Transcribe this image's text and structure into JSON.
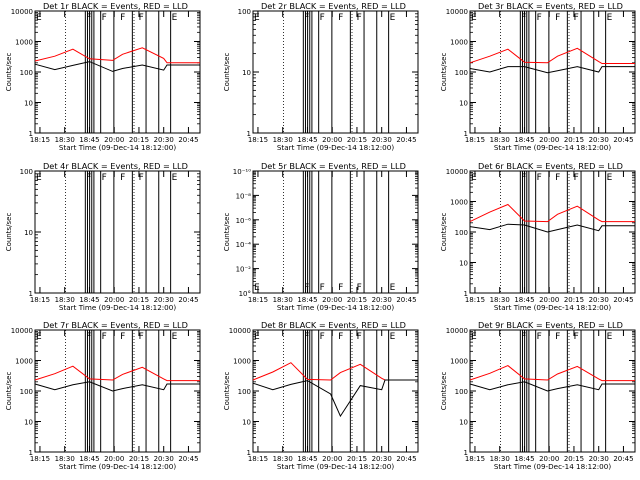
{
  "figure": {
    "xlabel_prefix": "Start Time",
    "start_label": "(09-Dec-14 18:12:00)"
  },
  "chart_data": [
    {
      "type": "line",
      "title": "Det 1r BLACK = Events, RED = LLD",
      "ylabel": "Counts/sec",
      "yscale": "log",
      "ylim": [
        1,
        10000
      ],
      "yticks": [
        "1",
        "10",
        "100",
        "1000",
        "10000"
      ],
      "xlim": [
        "18:12",
        "20:52"
      ],
      "xticks": [
        "18:15",
        "18:30",
        "18:45",
        "20:00",
        "20:15",
        "20:30",
        "20:45"
      ],
      "flags": [
        "E",
        "F",
        "F",
        "F",
        "F",
        "E"
      ],
      "series": [
        {
          "color": "#ff0000",
          "x": [
            "18:12",
            "18:24",
            "18:35",
            "18:45",
            "19:55",
            "20:05",
            "20:17",
            "20:30",
            "20:32",
            "20:52"
          ],
          "y": [
            230,
            330,
            560,
            270,
            240,
            380,
            620,
            280,
            200,
            200
          ]
        },
        {
          "color": "#000000",
          "x": [
            "18:12",
            "18:24",
            "18:35",
            "18:45",
            "19:55",
            "20:05",
            "20:17",
            "20:30",
            "20:32",
            "20:52"
          ],
          "y": [
            180,
            120,
            165,
            220,
            105,
            130,
            170,
            115,
            170,
            170
          ]
        }
      ]
    },
    {
      "type": "line",
      "title": "Det 2r BLACK = Events, RED = LLD",
      "ylabel": "Counts/sec",
      "yscale": "log",
      "ylim": [
        1,
        100
      ],
      "yticks": [
        "1",
        "10",
        "100"
      ],
      "xlim": [
        "18:12",
        "20:52"
      ],
      "xticks": [
        "18:15",
        "18:30",
        "18:45",
        "20:00",
        "20:15",
        "20:30",
        "20:45"
      ],
      "flags": [
        "E",
        "F",
        "F",
        "F",
        "F",
        "E"
      ],
      "series": []
    },
    {
      "type": "line",
      "title": "Det 3r BLACK = Events, RED = LLD",
      "ylabel": "Counts/sec",
      "yscale": "log",
      "ylim": [
        1,
        10000
      ],
      "yticks": [
        "1",
        "10",
        "100",
        "1000",
        "10000"
      ],
      "xlim": [
        "18:12",
        "20:52"
      ],
      "xticks": [
        "18:15",
        "18:30",
        "18:45",
        "20:00",
        "20:15",
        "20:30",
        "20:45"
      ],
      "flags": [
        "E",
        "F",
        "F",
        "F",
        "F",
        "E"
      ],
      "series": [
        {
          "color": "#ff0000",
          "x": [
            "18:12",
            "18:24",
            "18:35",
            "18:45",
            "19:55",
            "20:05",
            "20:17",
            "20:30",
            "20:32",
            "20:52"
          ],
          "y": [
            200,
            330,
            560,
            210,
            200,
            330,
            600,
            220,
            190,
            190
          ]
        },
        {
          "color": "#000000",
          "x": [
            "18:12",
            "18:24",
            "18:35",
            "18:45",
            "19:55",
            "20:05",
            "20:17",
            "20:30",
            "20:32",
            "20:52"
          ],
          "y": [
            130,
            100,
            150,
            150,
            95,
            110,
            150,
            100,
            150,
            150
          ]
        }
      ]
    },
    {
      "type": "line",
      "title": "Det 4r BLACK = Events, RED = LLD",
      "ylabel": "Counts/sec",
      "yscale": "log",
      "ylim": [
        1,
        100
      ],
      "yticks": [
        "1",
        "10",
        "100"
      ],
      "xlim": [
        "18:12",
        "20:52"
      ],
      "xticks": [
        "18:15",
        "18:30",
        "18:45",
        "20:00",
        "20:15",
        "20:30",
        "20:45"
      ],
      "flags": [
        "E",
        "F",
        "F",
        "F",
        "F",
        "E"
      ],
      "series": []
    },
    {
      "type": "line",
      "title": "Det 5r BLACK = Events, RED = LLD",
      "ylabel": "Counts/sec",
      "yscale": "log",
      "ylim": [
        1,
        1e-10
      ],
      "yticks": [
        "10°",
        "10⁻²",
        "10⁻⁴",
        "10⁻⁶",
        "10⁻⁸",
        "10⁻¹⁰"
      ],
      "xlim": [
        "18:12",
        "20:52"
      ],
      "xticks": [
        "18:15",
        "18:30",
        "18:45",
        "20:00",
        "20:15",
        "20:30",
        "20:45"
      ],
      "flags": [
        "E",
        "F",
        "F",
        "F",
        "F",
        "E"
      ],
      "series": []
    },
    {
      "type": "line",
      "title": "Det 6r BLACK = Events, RED = LLD",
      "ylabel": "Counts/sec",
      "yscale": "log",
      "ylim": [
        1,
        10000
      ],
      "yticks": [
        "1",
        "10",
        "100",
        "1000",
        "10000"
      ],
      "xlim": [
        "18:12",
        "20:52"
      ],
      "xticks": [
        "18:15",
        "18:30",
        "18:45",
        "20:00",
        "20:15",
        "20:30",
        "20:45"
      ],
      "flags": [
        "E",
        "F",
        "F",
        "F",
        "F",
        "E"
      ],
      "series": [
        {
          "color": "#ff0000",
          "x": [
            "18:12",
            "18:24",
            "18:35",
            "18:45",
            "19:55",
            "20:05",
            "20:17",
            "20:30",
            "20:32",
            "20:52"
          ],
          "y": [
            220,
            450,
            800,
            230,
            220,
            380,
            700,
            250,
            220,
            220
          ]
        },
        {
          "color": "#000000",
          "x": [
            "18:12",
            "18:24",
            "18:35",
            "18:45",
            "19:55",
            "20:05",
            "20:17",
            "20:30",
            "20:32",
            "20:52"
          ],
          "y": [
            150,
            120,
            180,
            170,
            100,
            120,
            170,
            110,
            160,
            160
          ]
        }
      ]
    },
    {
      "type": "line",
      "title": "Det 7r BLACK = Events, RED = LLD",
      "ylabel": "Counts/sec",
      "yscale": "log",
      "ylim": [
        1,
        10000
      ],
      "yticks": [
        "1",
        "10",
        "100",
        "1000",
        "10000"
      ],
      "xlim": [
        "18:12",
        "20:52"
      ],
      "xticks": [
        "18:15",
        "18:30",
        "18:45",
        "20:00",
        "20:15",
        "20:30",
        "20:45"
      ],
      "flags": [
        "E",
        "F",
        "F",
        "F",
        "F",
        "E"
      ],
      "series": [
        {
          "color": "#ff0000",
          "x": [
            "18:12",
            "18:24",
            "18:35",
            "18:45",
            "19:55",
            "20:05",
            "20:17",
            "20:30",
            "20:32",
            "20:52"
          ],
          "y": [
            230,
            370,
            650,
            250,
            230,
            350,
            600,
            250,
            220,
            220
          ]
        },
        {
          "color": "#000000",
          "x": [
            "18:12",
            "18:24",
            "18:35",
            "18:45",
            "19:55",
            "20:05",
            "20:17",
            "20:30",
            "20:32",
            "20:52"
          ],
          "y": [
            170,
            110,
            160,
            200,
            100,
            120,
            160,
            110,
            170,
            170
          ]
        }
      ]
    },
    {
      "type": "line",
      "title": "Det 8r BLACK = Events, RED = LLD",
      "ylabel": "Counts/sec",
      "yscale": "log",
      "ylim": [
        1,
        10000
      ],
      "yticks": [
        "1",
        "10",
        "100",
        "1000",
        "10000"
      ],
      "xlim": [
        "18:12",
        "20:52"
      ],
      "xticks": [
        "18:15",
        "18:30",
        "18:45",
        "20:00",
        "20:15",
        "20:30",
        "20:45"
      ],
      "flags": [
        "E",
        "F",
        "F",
        "F",
        "F",
        "E"
      ],
      "series": [
        {
          "color": "#ff0000",
          "x": [
            "18:12",
            "18:24",
            "18:35",
            "18:45",
            "19:55",
            "20:05",
            "20:17",
            "20:30",
            "20:32",
            "20:52"
          ],
          "y": [
            230,
            420,
            850,
            240,
            230,
            400,
            750,
            260,
            230,
            230
          ]
        },
        {
          "color": "#000000",
          "x": [
            "18:12",
            "18:24",
            "18:35",
            "18:45",
            "19:55",
            "20:05",
            "20:17",
            "20:30",
            "20:32",
            "20:52"
          ],
          "y": [
            180,
            110,
            165,
            220,
            80,
            15,
            150,
            110,
            230,
            230
          ]
        }
      ]
    },
    {
      "type": "line",
      "title": "Det 9r BLACK = Events, RED = LLD",
      "ylabel": "Counts/sec",
      "yscale": "log",
      "ylim": [
        1,
        10000
      ],
      "yticks": [
        "1",
        "10",
        "100",
        "1000",
        "10000"
      ],
      "xlim": [
        "18:12",
        "20:52"
      ],
      "xticks": [
        "18:15",
        "18:30",
        "18:45",
        "20:00",
        "20:15",
        "20:30",
        "20:45"
      ],
      "flags": [
        "E",
        "F",
        "F",
        "F",
        "F",
        "E"
      ],
      "series": [
        {
          "color": "#ff0000",
          "x": [
            "18:12",
            "18:24",
            "18:35",
            "18:45",
            "19:55",
            "20:05",
            "20:17",
            "20:30",
            "20:32",
            "20:52"
          ],
          "y": [
            230,
            380,
            680,
            250,
            230,
            360,
            640,
            250,
            220,
            220
          ]
        },
        {
          "color": "#000000",
          "x": [
            "18:12",
            "18:24",
            "18:35",
            "18:45",
            "19:55",
            "20:05",
            "20:17",
            "20:30",
            "20:32",
            "20:52"
          ],
          "y": [
            170,
            110,
            160,
            200,
            100,
            120,
            160,
            110,
            170,
            170
          ]
        }
      ]
    }
  ]
}
